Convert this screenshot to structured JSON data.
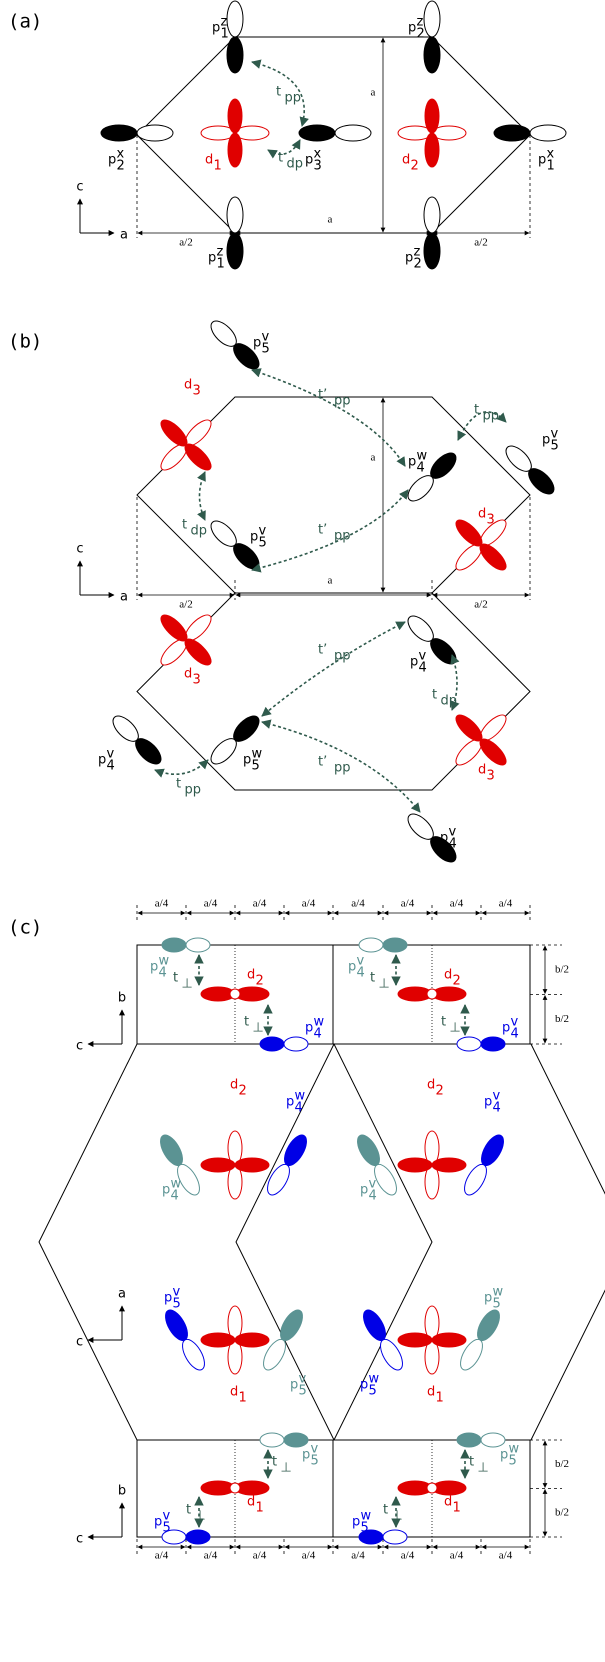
{
  "panels": [
    {
      "tag": "(a)",
      "labels": [
        {
          "base": "p",
          "sup": "z",
          "sub": "1"
        },
        {
          "base": "p",
          "sup": "z",
          "sub": "2"
        },
        {
          "base": "t",
          "sub": "pp"
        },
        {
          "base": "p",
          "sup": "x",
          "sub": "2"
        },
        {
          "base": "d",
          "sub": "1"
        },
        {
          "base": "t",
          "sub": "dp"
        },
        {
          "base": "p",
          "sup": "x",
          "sub": "3"
        },
        {
          "base": "d",
          "sub": "2"
        },
        {
          "base": "p",
          "sup": "x",
          "sub": "1"
        },
        {
          "base": "p",
          "sup": "z",
          "sub": "1"
        },
        {
          "base": "p",
          "sup": "z",
          "sub": "2"
        }
      ],
      "dims": [
        "a",
        "a",
        "a/2",
        "a/2"
      ],
      "axes": [
        "c",
        "a"
      ]
    },
    {
      "tag": "(b)",
      "labels": [
        {
          "base": "p",
          "sup": "v",
          "sub": "5"
        },
        {
          "base": "d",
          "sub": "3"
        },
        {
          "base": "t’",
          "sub": "pp"
        },
        {
          "base": "p",
          "sup": "w",
          "sub": "4"
        },
        {
          "base": "t",
          "sub": "pp"
        },
        {
          "base": "p",
          "sup": "v",
          "sub": "5"
        },
        {
          "base": "t",
          "sub": "dp"
        },
        {
          "base": "p",
          "sup": "v",
          "sub": "5"
        },
        {
          "base": "t’",
          "sub": "pp"
        },
        {
          "base": "d",
          "sub": "3"
        },
        {
          "base": "d",
          "sub": "3"
        },
        {
          "base": "p",
          "sup": "v",
          "sub": "4"
        },
        {
          "base": "t’",
          "sub": "pp"
        },
        {
          "base": "t",
          "sub": "dp"
        },
        {
          "base": "p",
          "sup": "v",
          "sub": "4"
        },
        {
          "base": "p",
          "sup": "w",
          "sub": "5"
        },
        {
          "base": "t",
          "sub": "pp"
        },
        {
          "base": "t’",
          "sub": "pp"
        },
        {
          "base": "d",
          "sub": "3"
        },
        {
          "base": "p",
          "sup": "v",
          "sub": "4"
        }
      ],
      "dims": [
        "a",
        "a",
        "a/2",
        "a/2"
      ],
      "axes": [
        "c",
        "a"
      ]
    },
    {
      "tag": "(c)",
      "labels": [
        {
          "base": "p",
          "sup": "w",
          "sub": "4"
        },
        {
          "base": "t",
          "sub": "⊥"
        },
        {
          "base": "d",
          "sub": "2"
        },
        {
          "base": "t",
          "sub": "⊥"
        },
        {
          "base": "p",
          "sup": "w",
          "sub": "4"
        },
        {
          "base": "p",
          "sup": "v",
          "sub": "4"
        },
        {
          "base": "t",
          "sub": "⊥"
        },
        {
          "base": "d",
          "sub": "2"
        },
        {
          "base": "t",
          "sub": "⊥"
        },
        {
          "base": "p",
          "sup": "v",
          "sub": "4"
        },
        {
          "base": "d",
          "sub": "2"
        },
        {
          "base": "p",
          "sup": "w",
          "sub": "4"
        },
        {
          "base": "p",
          "sup": "w",
          "sub": "4"
        },
        {
          "base": "d",
          "sub": "2"
        },
        {
          "base": "p",
          "sup": "v",
          "sub": "4"
        },
        {
          "base": "p",
          "sup": "v",
          "sub": "4"
        },
        {
          "base": "p",
          "sup": "v",
          "sub": "5"
        },
        {
          "base": "p",
          "sup": "v",
          "sub": "5"
        },
        {
          "base": "d",
          "sub": "1"
        },
        {
          "base": "p",
          "sup": "w",
          "sub": "5"
        },
        {
          "base": "p",
          "sup": "w",
          "sub": "5"
        },
        {
          "base": "d",
          "sub": "1"
        },
        {
          "base": "p",
          "sup": "v",
          "sub": "5"
        },
        {
          "base": "t",
          "sub": "⊥"
        },
        {
          "base": "d",
          "sub": "1"
        },
        {
          "base": "t",
          "sub": "⊥"
        },
        {
          "base": "p",
          "sup": "v",
          "sub": "5"
        },
        {
          "base": "p",
          "sup": "w",
          "sub": "5"
        },
        {
          "base": "t",
          "sub": "⊥"
        },
        {
          "base": "d",
          "sub": "1"
        },
        {
          "base": "t",
          "sub": "⊥"
        },
        {
          "base": "p",
          "sup": "w",
          "sub": "5"
        }
      ],
      "dims_top": [
        "a/4",
        "a/4",
        "a/4",
        "a/4",
        "a/4",
        "a/4",
        "a/4",
        "a/4"
      ],
      "dims_bottom": [
        "a/4",
        "a/4",
        "a/4",
        "a/4",
        "a/4",
        "a/4",
        "a/4",
        "a/4"
      ],
      "dims_right_top": [
        "b/2",
        "b/2"
      ],
      "dims_right_bottom": [
        "b/2",
        "b/2"
      ],
      "axes": [
        "b",
        "c",
        "a",
        "c",
        "b",
        "c"
      ]
    }
  ]
}
